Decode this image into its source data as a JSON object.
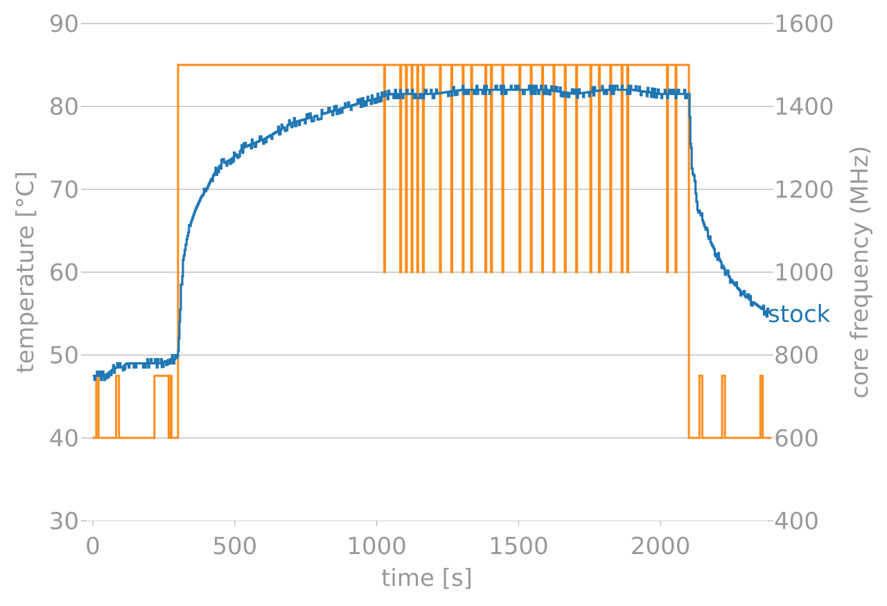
{
  "chart_data": {
    "type": "line",
    "xlabel": "time [s]",
    "ylabel_left": "temperature [°C]",
    "ylabel_right": "core frequency (MHz)",
    "xlim": [
      0,
      2400
    ],
    "ylim_left": [
      30,
      90
    ],
    "ylim_right": [
      400,
      1600
    ],
    "x_ticks": [
      0,
      500,
      1000,
      1500,
      2000
    ],
    "y_ticks_left": [
      30,
      40,
      50,
      60,
      70,
      80,
      90
    ],
    "y_ticks_right": [
      400,
      600,
      800,
      1000,
      1200,
      1400,
      1600
    ],
    "grid": "horizontal",
    "colors": {
      "temperature": "#1f77b4",
      "frequency": "#ff8c1a",
      "text": "#999999",
      "grid": "#b0b0b0"
    },
    "series": [
      {
        "name": "stock",
        "axis": "left",
        "x": [
          0,
          20,
          40,
          60,
          80,
          100,
          120,
          150,
          180,
          210,
          240,
          270,
          290,
          300,
          305,
          310,
          315,
          320,
          330,
          345,
          360,
          380,
          400,
          420,
          450,
          480,
          500,
          530,
          560,
          600,
          650,
          700,
          750,
          800,
          850,
          900,
          950,
          1000,
          1050,
          1100,
          1200,
          1300,
          1400,
          1500,
          1600,
          1700,
          1800,
          1900,
          2000,
          2050,
          2090,
          2100,
          2105,
          2110,
          2120,
          2130,
          2150,
          2170,
          2200,
          2230,
          2260,
          2300,
          2340,
          2380
        ],
        "values": [
          47.5,
          47.5,
          47.5,
          48,
          48.5,
          48.5,
          49,
          49,
          49,
          49,
          49,
          49.5,
          49.5,
          50,
          54,
          58,
          60,
          62,
          64,
          66,
          67.5,
          69,
          70,
          71.5,
          73,
          73.5,
          74,
          75,
          75.5,
          76,
          77,
          78,
          78.5,
          79,
          79.5,
          80,
          80.5,
          81,
          81.5,
          81.5,
          81.5,
          82,
          82,
          82,
          82,
          81.5,
          82,
          82,
          81.5,
          81.5,
          81.5,
          81.5,
          76,
          73,
          71,
          68,
          66,
          64,
          62,
          60,
          58.5,
          57,
          56,
          55
        ]
      },
      {
        "name": "",
        "axis": "right",
        "x": [
          0,
          10,
          12,
          18,
          20,
          80,
          82,
          90,
          92,
          215,
          217,
          265,
          267,
          275,
          277,
          298,
          300,
          1025,
          1027,
          1029,
          1080,
          1083,
          1086,
          1100,
          1103,
          1106,
          1120,
          1123,
          1126,
          1140,
          1143,
          1146,
          1160,
          1163,
          1166,
          1220,
          1223,
          1226,
          1260,
          1263,
          1266,
          1300,
          1303,
          1306,
          1330,
          1333,
          1336,
          1380,
          1383,
          1386,
          1400,
          1403,
          1406,
          1440,
          1443,
          1446,
          1500,
          1503,
          1506,
          1540,
          1543,
          1546,
          1580,
          1583,
          1586,
          1620,
          1623,
          1626,
          1660,
          1663,
          1666,
          1700,
          1703,
          1706,
          1750,
          1753,
          1756,
          1780,
          1783,
          1786,
          1820,
          1823,
          1826,
          1860,
          1863,
          1866,
          1880,
          1883,
          1886,
          2020,
          2023,
          2026,
          2050,
          2053,
          2056,
          2098,
          2100,
          2135,
          2137,
          2145,
          2147,
          2215,
          2217,
          2225,
          2227,
          2350,
          2352,
          2358,
          2360,
          2390
        ],
        "values": [
          600,
          600,
          750,
          750,
          600,
          600,
          750,
          750,
          600,
          600,
          750,
          750,
          600,
          750,
          600,
          600,
          1500,
          1500,
          1000,
          1500,
          1500,
          1000,
          1500,
          1500,
          1000,
          1500,
          1500,
          1000,
          1500,
          1500,
          1000,
          1500,
          1500,
          1000,
          1500,
          1500,
          1000,
          1500,
          1500,
          1000,
          1500,
          1500,
          1000,
          1500,
          1500,
          1000,
          1500,
          1500,
          1000,
          1500,
          1500,
          1000,
          1500,
          1500,
          1000,
          1500,
          1500,
          1000,
          1500,
          1500,
          1000,
          1500,
          1500,
          1000,
          1500,
          1500,
          1000,
          1500,
          1500,
          1000,
          1500,
          1500,
          1000,
          1500,
          1500,
          1000,
          1500,
          1500,
          1000,
          1500,
          1500,
          1000,
          1500,
          1500,
          1000,
          1500,
          1500,
          1000,
          1500,
          1500,
          1000,
          1500,
          1500,
          1000,
          1500,
          1500,
          600,
          600,
          750,
          750,
          600,
          600,
          750,
          750,
          600,
          600,
          750,
          750,
          600,
          600
        ]
      }
    ]
  }
}
